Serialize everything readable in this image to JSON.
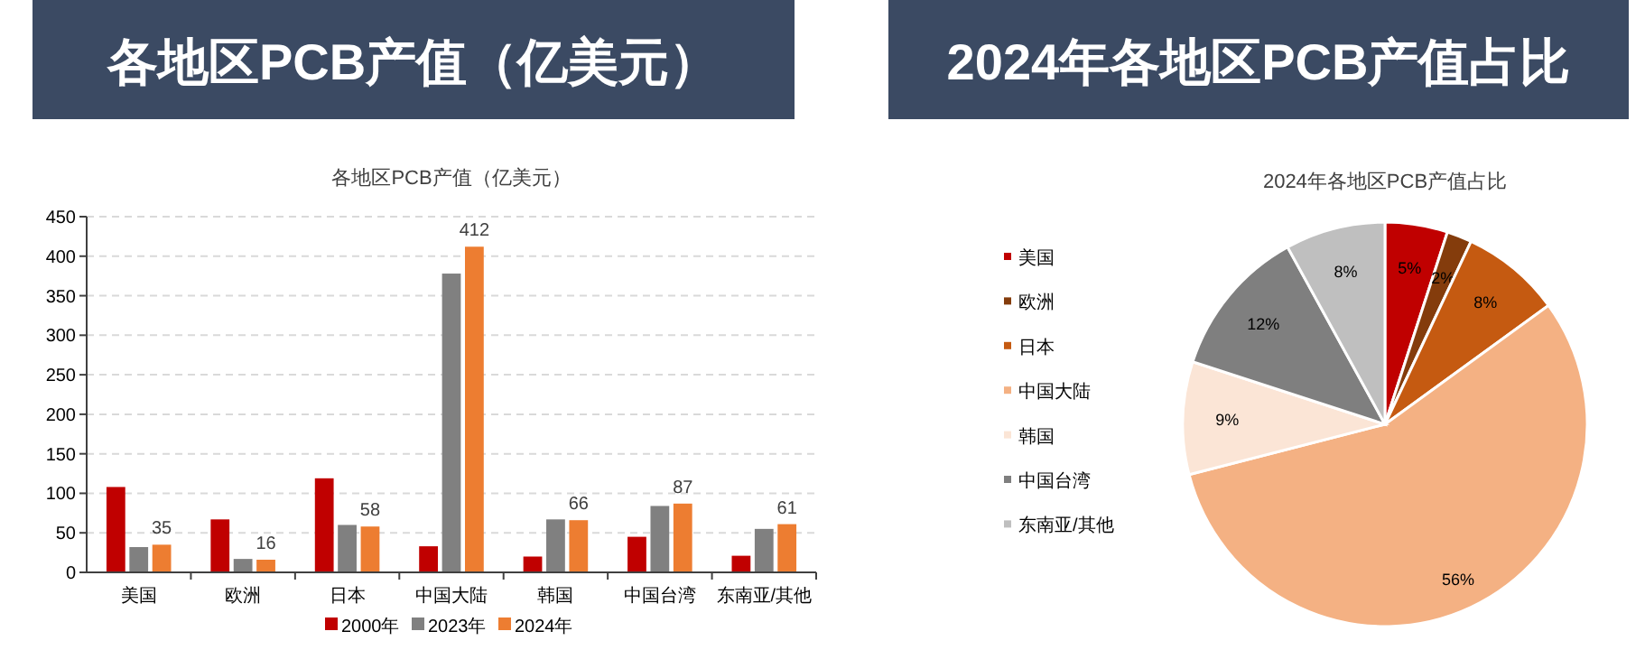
{
  "chart_data": [
    {
      "type": "bar",
      "title": "各地区PCB产值（亿美元）",
      "subtitle": "各地区PCB产值（亿美元）",
      "categories": [
        "美国",
        "欧洲",
        "日本",
        "中国大陆",
        "韩国",
        "中国台湾",
        "东南亚/其他"
      ],
      "series": [
        {
          "name": "2000年",
          "color": "#c00000",
          "values": [
            108,
            67,
            119,
            33,
            20,
            45,
            21
          ]
        },
        {
          "name": "2023年",
          "color": "#808080",
          "values": [
            32,
            17,
            60,
            378,
            67,
            84,
            55
          ]
        },
        {
          "name": "2024年",
          "color": "#ed7d31",
          "values": [
            35,
            16,
            58,
            412,
            66,
            87,
            61
          ],
          "value_labels": [
            "35",
            "16",
            "58",
            "412",
            "66",
            "87",
            "61"
          ]
        }
      ],
      "ylim": [
        0,
        450
      ],
      "yticks": [
        0,
        50,
        100,
        150,
        200,
        250,
        300,
        350,
        400,
        450
      ],
      "grid": "y",
      "legend": "bottom"
    },
    {
      "type": "pie",
      "title": "2024年各地区PCB产值占比",
      "subtitle": "2024年各地区PCB产值占比",
      "categories": [
        "美国",
        "欧洲",
        "日本",
        "中国大陆",
        "韩国",
        "中国台湾",
        "东南亚/其他"
      ],
      "values": [
        5,
        2,
        8,
        56,
        9,
        12,
        8
      ],
      "colors": [
        "#c00000",
        "#843c0c",
        "#c55a11",
        "#f4b183",
        "#fbe5d6",
        "#7f7f7f",
        "#bfbfbf"
      ],
      "value_labels": [
        "5%",
        "2%",
        "8%",
        "56%",
        "9%",
        "12%",
        "8%"
      ],
      "legend": "left"
    }
  ]
}
